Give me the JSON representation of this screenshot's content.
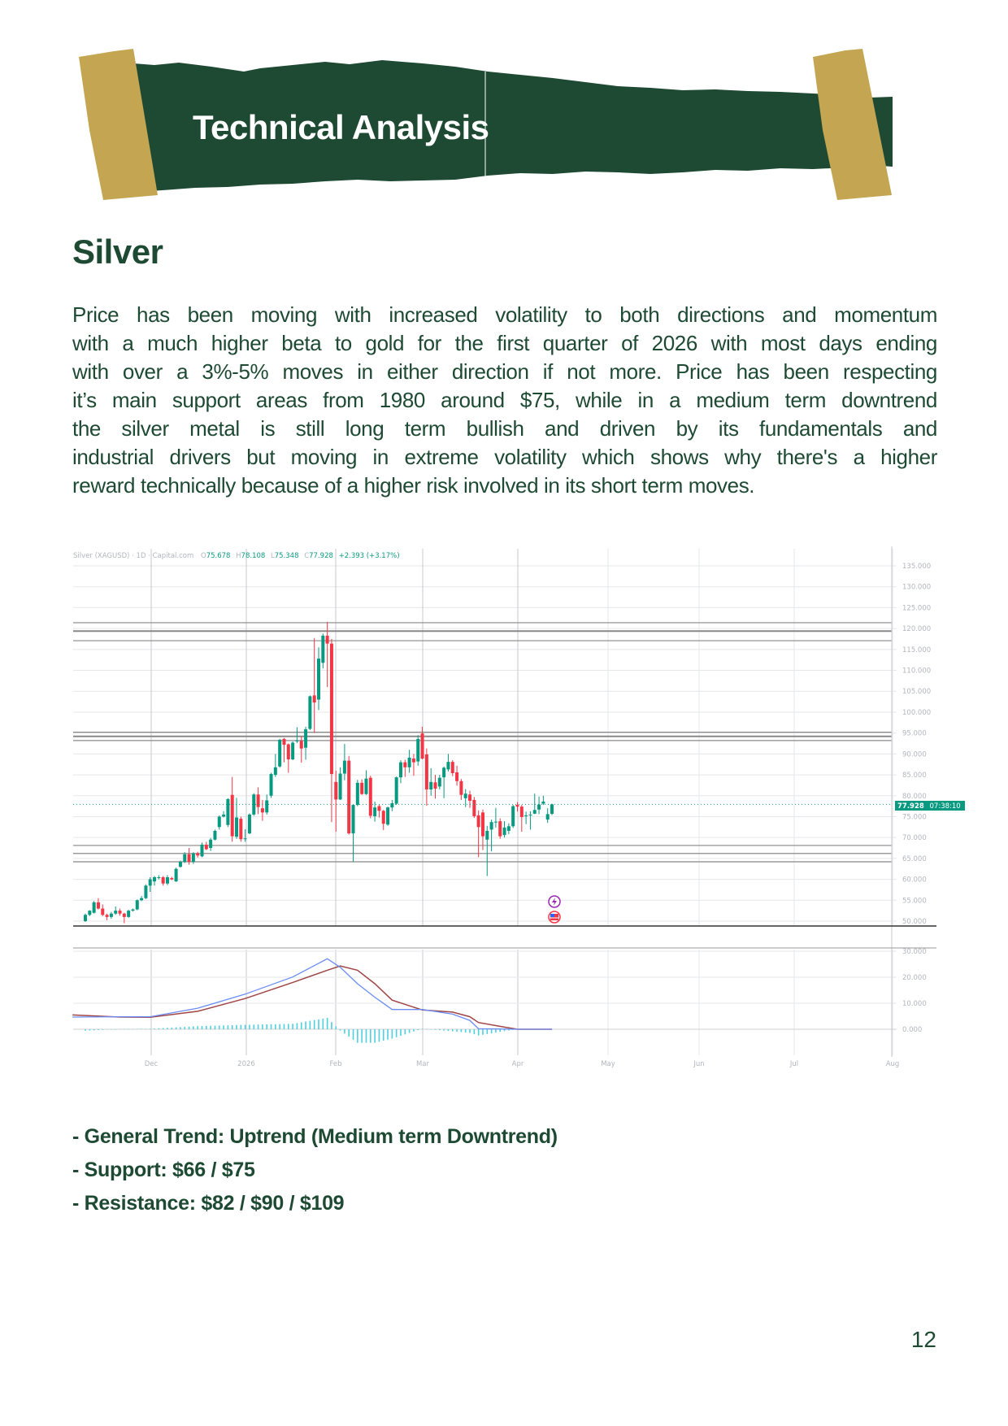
{
  "banner": {
    "title": "Technical Analysis",
    "colors": {
      "banner": "#1e4a33",
      "tape": "#c4a652"
    }
  },
  "section": {
    "heading": "Silver"
  },
  "paragraph": {
    "lines": [
      "Price has been moving with increased volatility to both directions and momentum",
      "with a much higher beta to gold for the first quarter of 2026 with most days ending",
      "with over a 3%-5% moves in either direction if not more. Price has been respecting",
      "it’s main support areas from 1980 around $75, while in a medium term downtrend",
      "the silver metal is still long term bullish and driven by its fundamentals and",
      "industrial drivers but moving in extreme volatility which shows why there's a higher",
      "reward technically because of a higher risk involved in its short term moves."
    ]
  },
  "chart_data": {
    "type": "candlestick",
    "header": {
      "symbol": "Silver (XAGUSD) · 1D · Capital.com",
      "open": "75.678",
      "high": "78.108",
      "low": "75.348",
      "close": "77.928",
      "change": "+2.393 (+3.17%)"
    },
    "last_price": "77.928",
    "countdown": "07:38:10",
    "price_axis": {
      "min": 50,
      "max": 135,
      "step": 5,
      "tick_labels": [
        "135.000",
        "130.000",
        "125.000",
        "120.000",
        "115.000",
        "110.000",
        "105.000",
        "100.000",
        "95.000",
        "90.000",
        "85.000",
        "80.000",
        "75.000",
        "70.000",
        "65.000",
        "60.000",
        "55.000",
        "50.000"
      ]
    },
    "indicator_axis": {
      "tick_labels": [
        "30.000",
        "20.000",
        "10.000",
        "0.000"
      ],
      "ticks": [
        30,
        20,
        10,
        0
      ]
    },
    "x_tick_labels": [
      "Dec",
      "2026",
      "Feb",
      "Mar",
      "Apr",
      "May",
      "Jun",
      "Jul",
      "Aug"
    ],
    "horizontal_levels": [
      121.4,
      119.4,
      117.1,
      95.2,
      94.2,
      93.2,
      68.1,
      66.2,
      64.2
    ],
    "colors": {
      "up": "#089981",
      "down": "#f23645",
      "macd": "#6a8df5",
      "signal": "#a04545",
      "histogram": "#4dd0e1",
      "levels": "#888888"
    },
    "grid": true,
    "candles_ohlc": [
      [
        50,
        51.8,
        49.8,
        51.5
      ],
      [
        51.5,
        52.6,
        51.2,
        52.5
      ],
      [
        52,
        54.8,
        51.8,
        54.5
      ],
      [
        54.5,
        55.5,
        52.8,
        53
      ],
      [
        53,
        54,
        51.2,
        51.5
      ],
      [
        51.5,
        51.8,
        50.2,
        51
      ],
      [
        51,
        52.2,
        50.6,
        51.8
      ],
      [
        51.8,
        53.5,
        51.5,
        52.5
      ],
      [
        52.5,
        53,
        51.3,
        51.8
      ],
      [
        51.8,
        52,
        49.5,
        51
      ],
      [
        51,
        52.7,
        50.8,
        52.5
      ],
      [
        52.5,
        53,
        52.3,
        52.8
      ],
      [
        52.8,
        55.2,
        52.6,
        55
      ],
      [
        55,
        56,
        54.8,
        55.5
      ],
      [
        55.5,
        58.8,
        55.3,
        58.5
      ],
      [
        58.5,
        60.5,
        57,
        60
      ],
      [
        59.5,
        60.8,
        58.5,
        60.5
      ],
      [
        60.3,
        61,
        60,
        60.5
      ],
      [
        60.5,
        60.8,
        58.5,
        59
      ],
      [
        59,
        61,
        58.6,
        60.5
      ],
      [
        60.3,
        60.6,
        59.8,
        60
      ],
      [
        59.5,
        62.8,
        59.4,
        62.5
      ],
      [
        63,
        64.5,
        62.8,
        64.2
      ],
      [
        64.2,
        66.5,
        63.9,
        66
      ],
      [
        66,
        67.5,
        63.5,
        64.2
      ],
      [
        64.2,
        66.5,
        63.7,
        66.2
      ],
      [
        66.2,
        66.6,
        65.2,
        65.7
      ],
      [
        65.5,
        68.8,
        65.3,
        68.3
      ],
      [
        68.3,
        69,
        67,
        67.2
      ],
      [
        67.5,
        69.9,
        66.8,
        69.5
      ],
      [
        69.5,
        71.9,
        69.3,
        71.6
      ],
      [
        72.5,
        75.3,
        71.9,
        75
      ],
      [
        75,
        76.3,
        74.8,
        75.5
      ],
      [
        73,
        79.4,
        72.5,
        79.2
      ],
      [
        80.2,
        84.5,
        69,
        70.3
      ],
      [
        70.2,
        79.5,
        69.7,
        74.8
      ],
      [
        74.5,
        75,
        69,
        69.6
      ],
      [
        69.6,
        72,
        69,
        69.8
      ],
      [
        71,
        75.8,
        70.8,
        75.5
      ],
      [
        75.5,
        80.6,
        75.2,
        80.3
      ],
      [
        80.3,
        82,
        75.6,
        77.3
      ],
      [
        77,
        79,
        74,
        76
      ],
      [
        76,
        80.3,
        75.5,
        78.9
      ],
      [
        80,
        85.5,
        79.5,
        85.2
      ],
      [
        85,
        90,
        84.5,
        86.8
      ],
      [
        87,
        93.6,
        86.7,
        93.4
      ],
      [
        93.6,
        93.8,
        88,
        92.2
      ],
      [
        92.3,
        92.5,
        85.5,
        88.7
      ],
      [
        88.7,
        93,
        88.5,
        92.7
      ],
      [
        93,
        96.4,
        92.6,
        93.2
      ],
      [
        93.1,
        94.2,
        87.9,
        91.3
      ],
      [
        91.5,
        96.5,
        88.6,
        95.9
      ],
      [
        96,
        104,
        95.7,
        103.8
      ],
      [
        104,
        117.7,
        95,
        102.3
      ],
      [
        103,
        115.5,
        100.5,
        112.8
      ],
      [
        111.8,
        118.8,
        110.5,
        118.3
      ],
      [
        118.3,
        121.6,
        106,
        116.4
      ],
      [
        116.4,
        117.5,
        73.7,
        85.2
      ],
      [
        83.3,
        86,
        71.4,
        79.1
      ],
      [
        79.1,
        86.8,
        79,
        85.3
      ],
      [
        85.3,
        92.4,
        83.7,
        88.4
      ],
      [
        88.4,
        89.5,
        70.7,
        71
      ],
      [
        71,
        77.8,
        64.2,
        77.8
      ],
      [
        77.8,
        83.8,
        77.5,
        83.1
      ],
      [
        83.1,
        83.9,
        80.2,
        80.4
      ],
      [
        80.4,
        86.1,
        80.2,
        84.1
      ],
      [
        84.3,
        84.8,
        74.6,
        75.2
      ],
      [
        75.1,
        78.6,
        73.8,
        77.2
      ],
      [
        77.5,
        77.8,
        74.8,
        76.4
      ],
      [
        76.4,
        76.6,
        71.8,
        73.3
      ],
      [
        73.1,
        77.4,
        72.8,
        77.2
      ],
      [
        77.2,
        79,
        76.3,
        78.2
      ],
      [
        78.1,
        84.6,
        77.8,
        84.4
      ],
      [
        84.4,
        88.5,
        83,
        88
      ],
      [
        88,
        88.6,
        84.5,
        86.8
      ],
      [
        86.8,
        91,
        85.5,
        89.1
      ],
      [
        88.9,
        90,
        84.8,
        88
      ],
      [
        88.2,
        94.5,
        87.2,
        93.6
      ],
      [
        94.9,
        96.5,
        88.7,
        88.9
      ],
      [
        89.9,
        91.3,
        77.6,
        81.5
      ],
      [
        81.5,
        86.6,
        80,
        83.3
      ],
      [
        83.2,
        85,
        79.3,
        81.7
      ],
      [
        82.2,
        85,
        81.5,
        84.3
      ],
      [
        84.4,
        87,
        79.4,
        86.7
      ],
      [
        86.3,
        90,
        85.8,
        88.1
      ],
      [
        88.1,
        88.5,
        84.7,
        85.4
      ],
      [
        85.6,
        87.2,
        82.4,
        83.5
      ],
      [
        83.5,
        84,
        79,
        80.2
      ],
      [
        79.4,
        81.6,
        77.3,
        80.5
      ],
      [
        80.3,
        81.2,
        77.1,
        78.8
      ],
      [
        79,
        79.7,
        74.7,
        75.1
      ],
      [
        75.3,
        76.5,
        65.3,
        72.5
      ],
      [
        76,
        76.7,
        67,
        70.3
      ],
      [
        69.5,
        72.8,
        60.8,
        71.6
      ],
      [
        71.9,
        74.3,
        66.7,
        73.7
      ],
      [
        73.6,
        77.1,
        72.4,
        73.8
      ],
      [
        73.9,
        74.6,
        69.7,
        70.3
      ],
      [
        70.6,
        73.9,
        70,
        72.4
      ],
      [
        71.6,
        73.4,
        70.8,
        72.7
      ],
      [
        72.7,
        77.8,
        72.3,
        77.5
      ],
      [
        77.8,
        78.5,
        76.2,
        77.4
      ],
      [
        77.4,
        77.8,
        71.4,
        74.9
      ],
      [
        75.1,
        76.2,
        73.2,
        75.3
      ],
      [
        75.3,
        76.3,
        71.9,
        75.5
      ],
      [
        75.7,
        80.5,
        75.6,
        76.6
      ],
      [
        76.7,
        79.8,
        75.6,
        77.9
      ],
      [
        78.1,
        80,
        77.8,
        78.6
      ],
      [
        74.3,
        77,
        73.5,
        75.6
      ],
      [
        75.678,
        78.108,
        75.348,
        77.928
      ]
    ],
    "indicator_samples": [
      {
        "i": -3,
        "macd": 4.7,
        "signal": 5.5
      },
      {
        "i": 8,
        "macd": 4.8,
        "signal": 4.7
      },
      {
        "i": 15,
        "macd": 4.8,
        "signal": 4.6
      },
      {
        "i": 26,
        "macd": 8.1,
        "signal": 6.9
      },
      {
        "i": 37,
        "macd": 13.5,
        "signal": 11.8
      },
      {
        "i": 48,
        "macd": 20.1,
        "signal": 18
      },
      {
        "i": 56,
        "macd": 27.1,
        "signal": 22.7
      },
      {
        "i": 59,
        "macd": 23.8,
        "signal": 24.3
      },
      {
        "i": 63,
        "macd": 17.5,
        "signal": 22.7
      },
      {
        "i": 67,
        "macd": 12.3,
        "signal": 17.5
      },
      {
        "i": 71,
        "macd": 7.6,
        "signal": 11.2
      },
      {
        "i": 78,
        "macd": 7.6,
        "signal": 7.4
      },
      {
        "i": 85,
        "macd": 5.8,
        "signal": 6.6
      },
      {
        "i": 89,
        "macd": 3.4,
        "signal": 4.8
      },
      {
        "i": 91,
        "macd": 0.2,
        "signal": 2.6
      },
      {
        "i": 97,
        "macd": 0.1,
        "signal": 0.8
      },
      {
        "i": 100,
        "macd": 0,
        "signal": 0
      },
      {
        "i": 108,
        "macd": 0,
        "signal": 0
      }
    ],
    "event_icons": [
      "lightning-icon",
      "us-flag-icon"
    ]
  },
  "summary": {
    "bullets": [
      "- General Trend: Uptrend (Medium term Downtrend)",
      "- Support: $66 / $75",
      "- Resistance: $82 / $90 / $109"
    ]
  },
  "page": {
    "number": "12"
  }
}
